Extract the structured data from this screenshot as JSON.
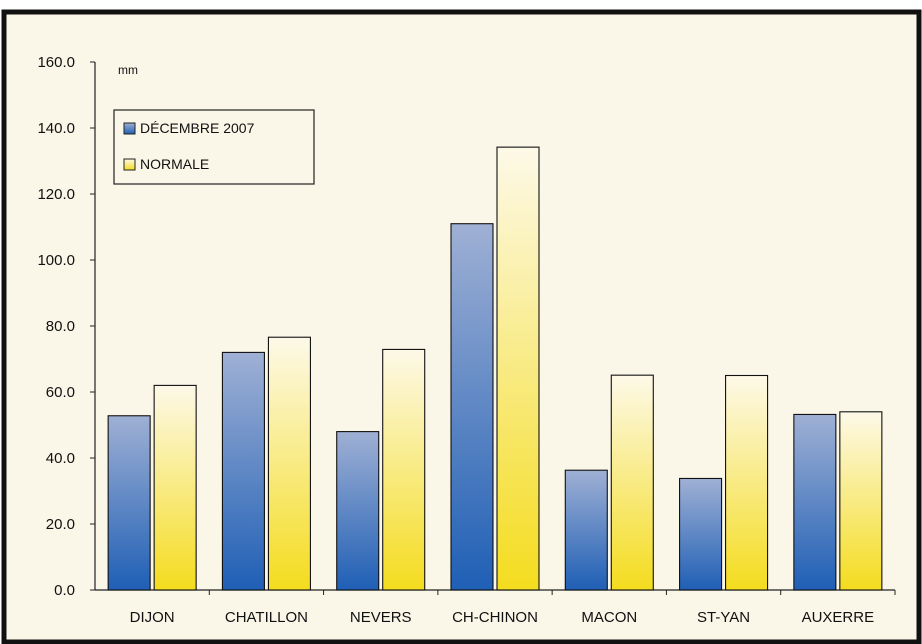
{
  "chart_data": {
    "type": "bar",
    "unit": "mm",
    "categories": [
      "DIJON",
      "CHATILLON",
      "NEVERS",
      "CH-CHINON",
      "MACON",
      "ST-YAN",
      "AUXERRE"
    ],
    "series": [
      {
        "name": "DÉCEMBRE 2007",
        "values": [
          52.8,
          72.0,
          48.0,
          111.0,
          36.3,
          33.8,
          53.2
        ]
      },
      {
        "name": "NORMALE",
        "values": [
          62.0,
          76.6,
          72.9,
          134.2,
          65.1,
          65.0,
          54.0
        ]
      }
    ],
    "ylim": [
      0,
      160
    ],
    "yticks": [
      "0.0",
      "20.0",
      "40.0",
      "60.0",
      "80.0",
      "100.0",
      "120.0",
      "140.0",
      "160.0"
    ],
    "grid": false,
    "legend_position": "top-left",
    "colors": {
      "background": "#faf6e8",
      "frame": "#111111",
      "decembre_top": "#9fb0d4",
      "decembre_bottom": "#1f5fb5",
      "normale_top": "#fdf9e8",
      "normale_bottom": "#f4dc1e"
    }
  }
}
